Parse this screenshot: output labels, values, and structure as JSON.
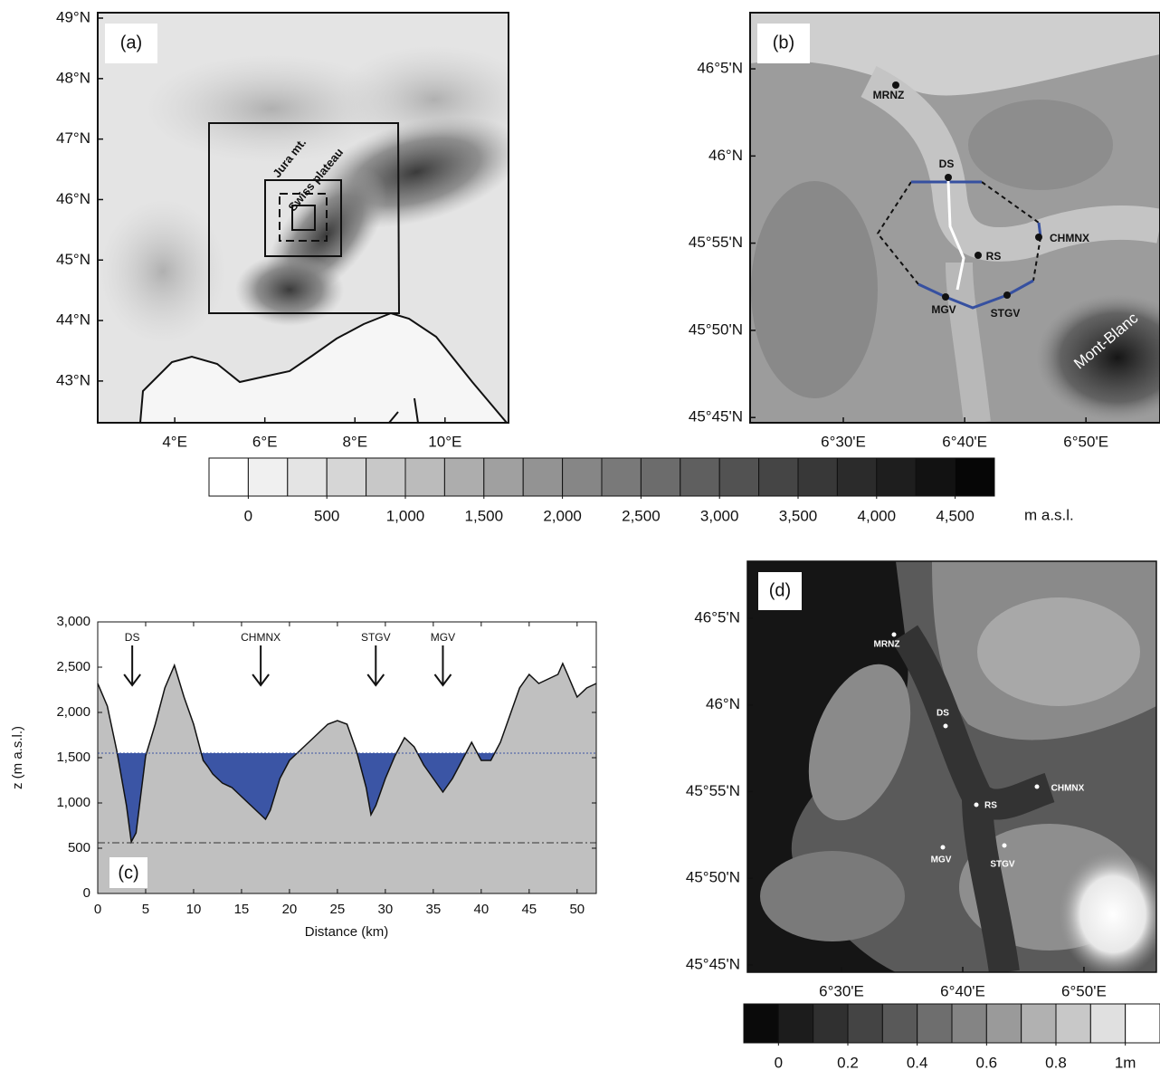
{
  "panel_a": {
    "label": "(a)",
    "xlim": [
      2.29,
      11.41
    ],
    "ylim": [
      42.31,
      49.09
    ],
    "xticks": [
      {
        "value": 4,
        "label": "4°E"
      },
      {
        "value": 6,
        "label": "6°E"
      },
      {
        "value": 8,
        "label": "8°E"
      },
      {
        "value": 10,
        "label": "10°E"
      }
    ],
    "yticks": [
      {
        "value": 43,
        "label": "43°N"
      },
      {
        "value": 44,
        "label": "44°N"
      },
      {
        "value": 45,
        "label": "45°N"
      },
      {
        "value": 46,
        "label": "46°N"
      },
      {
        "value": 47,
        "label": "47°N"
      },
      {
        "value": 48,
        "label": "48°N"
      },
      {
        "value": 49,
        "label": "49°N"
      }
    ],
    "annotations": [
      "Jura mt.",
      "Swiss plateau"
    ]
  },
  "panel_b": {
    "label": "(b)",
    "xlim": [
      6.372,
      6.935
    ],
    "ylim": [
      45.745,
      46.137
    ],
    "xticks": [
      {
        "value": 6.5,
        "label": "6°30'E"
      },
      {
        "value": 6.6667,
        "label": "6°40'E"
      },
      {
        "value": 6.8333,
        "label": "6°50'E"
      }
    ],
    "yticks": [
      {
        "value": 45.75,
        "label": "45°45'N"
      },
      {
        "value": 45.8333,
        "label": "45°50'N"
      },
      {
        "value": 45.9167,
        "label": "45°55'N"
      },
      {
        "value": 46,
        "label": "46°N"
      },
      {
        "value": 46.0833,
        "label": "46°5'N"
      }
    ],
    "stations": [
      "MRNZ",
      "DS",
      "RS",
      "CHMNX",
      "MGV",
      "STGV"
    ],
    "annotation": "Mont-Blanc"
  },
  "elevation_colorbar": {
    "lim": [
      -250,
      4750
    ],
    "unit": "m a.s.l.",
    "ticks": [
      0,
      500,
      {
        "value": 1000,
        "label": "1,000"
      },
      {
        "value": 1500,
        "label": "1,500"
      },
      {
        "value": 2000,
        "label": "2,000"
      },
      {
        "value": 2500,
        "label": "2,500"
      },
      {
        "value": 3000,
        "label": "3,000"
      },
      {
        "value": 3500,
        "label": "3,500"
      },
      {
        "value": 4000,
        "label": "4,000"
      },
      {
        "value": 4500,
        "label": "4,500"
      }
    ],
    "colors": [
      "#ffffff",
      "#f0f0f0",
      "#e4e4e4",
      "#d6d6d6",
      "#c8c8c8",
      "#bbbbbb",
      "#adadad",
      "#a0a0a0",
      "#939393",
      "#868686",
      "#797979",
      "#6c6c6c",
      "#5f5f5f",
      "#525252",
      "#454545",
      "#383838",
      "#2b2b2b",
      "#1e1e1e",
      "#121212",
      "#060606"
    ]
  },
  "chart_data": {
    "type": "area",
    "label": "(c)",
    "x_label": "Distance (km)",
    "y_label": "z (m a.s.l.)",
    "x": [
      0,
      1,
      2,
      3,
      3.5,
      4,
      5,
      6,
      7,
      8,
      9,
      10,
      11,
      11.5,
      12,
      13,
      14,
      15,
      16,
      17,
      17.5,
      18,
      19,
      20,
      21,
      22,
      23,
      24,
      25,
      26,
      27,
      28,
      28.5,
      29,
      30,
      31,
      32,
      33,
      34,
      35,
      36,
      37,
      38,
      39,
      40,
      41,
      42,
      43,
      44,
      45,
      46,
      47,
      48,
      48.5,
      49,
      50,
      51,
      52
    ],
    "values": [
      2320,
      2070,
      1570,
      970,
      570,
      670,
      1520,
      1870,
      2270,
      2520,
      2170,
      1870,
      1470,
      1400,
      1320,
      1220,
      1170,
      1070,
      970,
      870,
      820,
      920,
      1270,
      1470,
      1570,
      1670,
      1770,
      1870,
      1910,
      1870,
      1570,
      1170,
      870,
      970,
      1270,
      1520,
      1720,
      1620,
      1420,
      1270,
      1120,
      1270,
      1470,
      1670,
      1470,
      1470,
      1670,
      1970,
      2270,
      2420,
      2320,
      2370,
      2420,
      2540,
      2420,
      2170,
      2270,
      2320
    ],
    "color": "#c0c0c0",
    "reference_lines": [
      {
        "value": 1550,
        "style": "dotted",
        "color": "#3b55a5",
        "fill": "#3b55a5"
      },
      {
        "value": 560,
        "style": "dashdot",
        "color": "#333333"
      }
    ],
    "annotations": [
      {
        "text": "DS",
        "x": 3.6
      },
      {
        "text": "CHMNX",
        "x": 17
      },
      {
        "text": "STGV",
        "x": 29
      },
      {
        "text": "MGV",
        "x": 36
      }
    ],
    "xlim": [
      0,
      52
    ],
    "ylim": [
      0,
      3000
    ],
    "xticks": [
      0,
      5,
      10,
      15,
      20,
      25,
      30,
      35,
      40,
      45,
      50
    ],
    "yticks": [
      0,
      500,
      {
        "value": 1000,
        "label": "1,000"
      },
      {
        "value": 1500,
        "label": "1,500"
      },
      {
        "value": 2000,
        "label": "2,000"
      },
      {
        "value": 2500,
        "label": "2,500"
      },
      {
        "value": 3000,
        "label": "3,000"
      }
    ]
  },
  "panel_d": {
    "label": "(d)",
    "xlim": [
      6.3706,
      6.9329
    ],
    "ylim": [
      45.743,
      46.1381
    ],
    "xticks": [
      {
        "value": 6.5,
        "label": "6°30'E"
      },
      {
        "value": 6.6667,
        "label": "6°40'E"
      },
      {
        "value": 6.8333,
        "label": "6°50'E"
      }
    ],
    "yticks": [
      {
        "value": 45.75,
        "label": "45°45'N"
      },
      {
        "value": 45.8333,
        "label": "45°50'N"
      },
      {
        "value": 45.9167,
        "label": "45°55'N"
      },
      {
        "value": 46,
        "label": "46°N"
      },
      {
        "value": 46.0833,
        "label": "46°5'N"
      }
    ],
    "stations": [
      "MRNZ",
      "DS",
      "RS",
      "CHMNX",
      "MGV",
      "STGV"
    ]
  },
  "snow_colorbar": {
    "lim": [
      -0.1,
      1.1
    ],
    "ticks": [
      0,
      0.2,
      0.4,
      0.6,
      0.8,
      {
        "value": 1,
        "label": "1m"
      }
    ],
    "colors": [
      "#0a0a0a",
      "#1c1c1c",
      "#303030",
      "#444444",
      "#595959",
      "#6e6e6e",
      "#848484",
      "#9a9a9a",
      "#b1b1b1",
      "#c8c8c8",
      "#e0e0e0",
      "#ffffff"
    ]
  }
}
